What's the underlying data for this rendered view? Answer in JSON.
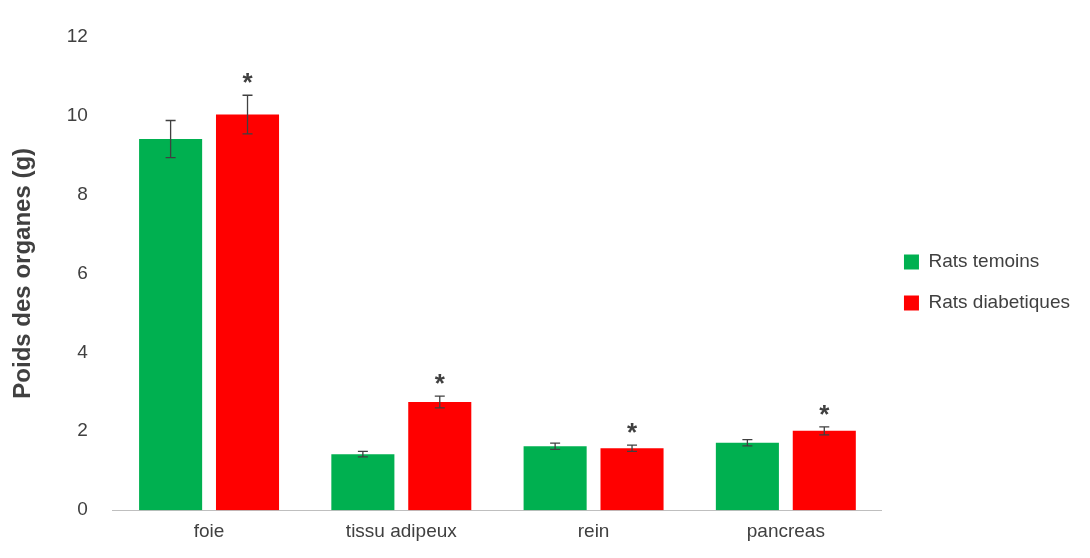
{
  "chart_data": {
    "type": "bar",
    "ylabel": "Poids des organes (g)",
    "categories": [
      "foie",
      "tissu adipeux",
      "rein",
      "pancreas"
    ],
    "series": [
      {
        "name": "Rats temoins",
        "color": "#00b050",
        "values": [
          9.4,
          1.42,
          1.62,
          1.71
        ],
        "errors": [
          0.47,
          0.07,
          0.08,
          0.08
        ]
      },
      {
        "name": "Rats diabetiques",
        "color": "#ff0000",
        "values": [
          10.02,
          2.74,
          1.57,
          2.01
        ],
        "errors": [
          0.49,
          0.15,
          0.08,
          0.1
        ]
      }
    ],
    "ylim": [
      0,
      12
    ],
    "yticks": [
      0,
      2,
      4,
      6,
      8,
      10,
      12
    ],
    "grid": false,
    "legend": "right",
    "annotations": [
      "*",
      "*",
      "*",
      "*"
    ]
  }
}
